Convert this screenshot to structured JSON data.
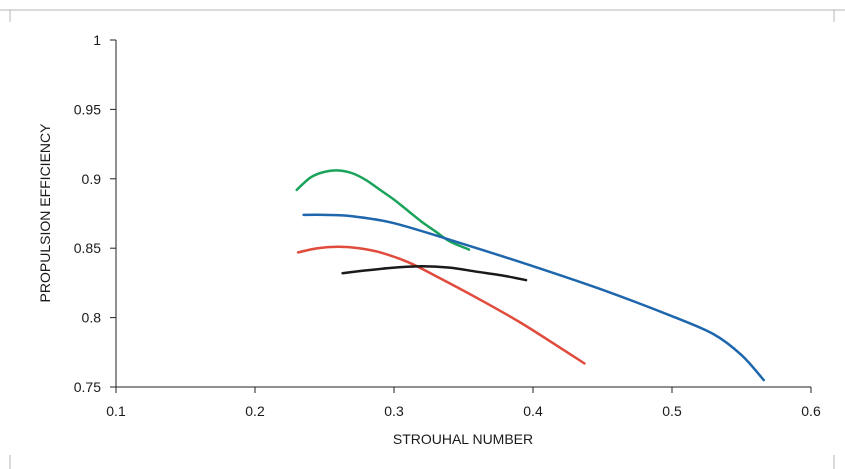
{
  "chart_data": {
    "type": "line",
    "title": "",
    "xlabel": "STROUHAL NUMBER",
    "ylabel": "PROPULSION EFFICIENCY",
    "xlim": [
      0.1,
      0.6
    ],
    "ylim": [
      0.75,
      1.0
    ],
    "xticks": [
      0.1,
      0.2,
      0.3,
      0.4,
      0.5,
      0.6
    ],
    "xtick_labels": [
      "0.1",
      "0.2",
      "0.3",
      "0.4",
      "0.5",
      "0.6"
    ],
    "yticks": [
      0.75,
      0.8,
      0.85,
      0.9,
      0.95,
      1.0
    ],
    "ytick_labels": [
      "0.75",
      "0.8",
      "0.85",
      "0.9",
      "0.95",
      "1"
    ],
    "grid": false,
    "legend": "none",
    "series": [
      {
        "color": "#1aa35a",
        "points": [
          [
            0.23,
            0.892
          ],
          [
            0.24,
            0.901
          ],
          [
            0.25,
            0.905
          ],
          [
            0.26,
            0.906
          ],
          [
            0.27,
            0.904
          ],
          [
            0.28,
            0.899
          ],
          [
            0.29,
            0.892
          ],
          [
            0.3,
            0.885
          ],
          [
            0.31,
            0.877
          ],
          [
            0.32,
            0.869
          ],
          [
            0.33,
            0.862
          ],
          [
            0.34,
            0.855
          ],
          [
            0.354,
            0.849
          ]
        ]
      },
      {
        "color": "#1f67ad",
        "points": [
          [
            0.235,
            0.874
          ],
          [
            0.25,
            0.874
          ],
          [
            0.27,
            0.873
          ],
          [
            0.3,
            0.868
          ],
          [
            0.35,
            0.853
          ],
          [
            0.4,
            0.837
          ],
          [
            0.45,
            0.82
          ],
          [
            0.5,
            0.801
          ],
          [
            0.53,
            0.788
          ],
          [
            0.55,
            0.773
          ],
          [
            0.566,
            0.755
          ]
        ]
      },
      {
        "color": "#e04b3c",
        "points": [
          [
            0.231,
            0.847
          ],
          [
            0.245,
            0.85
          ],
          [
            0.26,
            0.851
          ],
          [
            0.275,
            0.85
          ],
          [
            0.29,
            0.847
          ],
          [
            0.31,
            0.84
          ],
          [
            0.33,
            0.83
          ],
          [
            0.36,
            0.814
          ],
          [
            0.39,
            0.797
          ],
          [
            0.42,
            0.778
          ],
          [
            0.437,
            0.767
          ]
        ]
      },
      {
        "color": "#1a1a1a",
        "points": [
          [
            0.263,
            0.832
          ],
          [
            0.28,
            0.834
          ],
          [
            0.3,
            0.836
          ],
          [
            0.32,
            0.837
          ],
          [
            0.34,
            0.836
          ],
          [
            0.36,
            0.833
          ],
          [
            0.38,
            0.83
          ],
          [
            0.395,
            0.827
          ]
        ]
      }
    ]
  }
}
